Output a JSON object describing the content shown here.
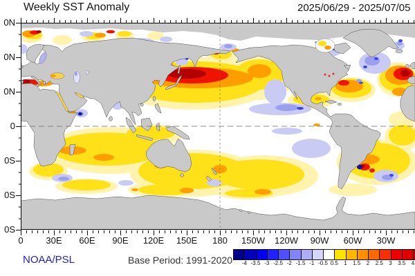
{
  "header": {
    "title": "Weekly SST Anomaly",
    "date_range": "2025/06/29 - 2025/07/05"
  },
  "footer": {
    "credit": "NOAA/PSL",
    "base_period": "Base Period: 1991-2020"
  },
  "axes": {
    "lat_labels": [
      "0N",
      "0N",
      "0N",
      "0",
      "0S",
      "0S",
      "0S"
    ],
    "lon_labels": [
      "0",
      "30E",
      "60E",
      "90E",
      "120E",
      "150E",
      "180",
      "150W",
      "120W",
      "90W",
      "60W",
      "30W"
    ]
  },
  "map": {
    "land_color": "#c9c9c9",
    "ocean_color": "#ffffff",
    "dashed_lines": [
      "equator",
      "dateline-180"
    ]
  },
  "colorbar": {
    "unit_labels": [
      "-4",
      "-3.5",
      "-3",
      "-2.5",
      "-2",
      "-1.5",
      "-1",
      "-0.5",
      "0.5",
      "1",
      "1.5",
      "2",
      "2.5",
      "3",
      "3.5",
      "4"
    ],
    "cell_colors": [
      "#00008b",
      "#0000bb",
      "#0000ee",
      "#2222ff",
      "#5050ff",
      "#8484fa",
      "#aeaef8",
      "#d6d6fb",
      "#ffffff",
      "#ffe400",
      "#ffb600",
      "#ff9000",
      "#ff6a00",
      "#f63000",
      "#ee0000",
      "#e00000",
      "#b00000"
    ]
  }
}
